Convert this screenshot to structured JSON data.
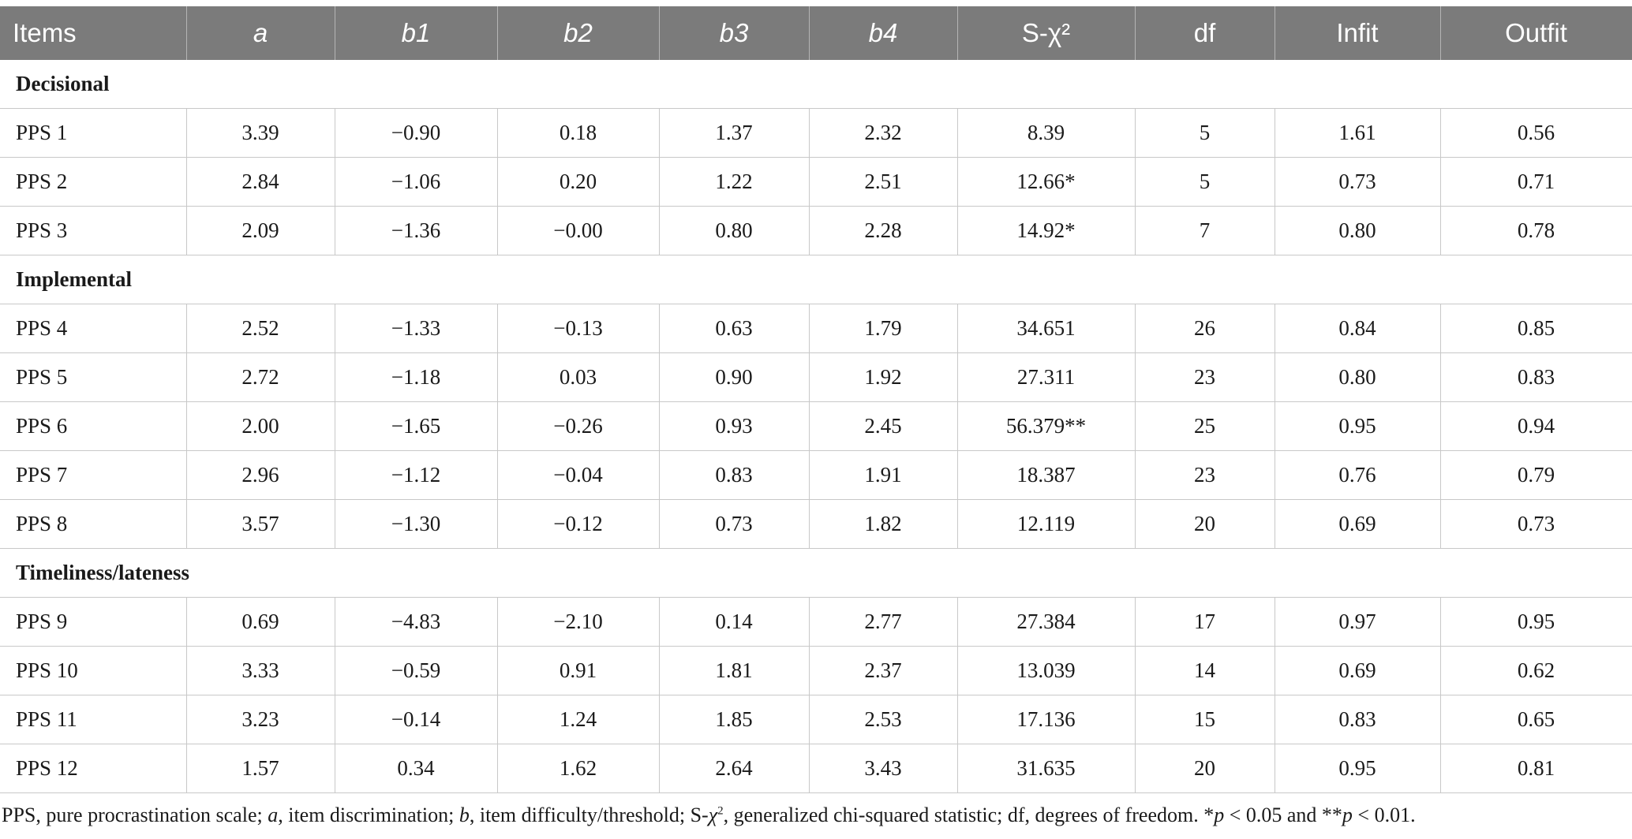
{
  "table": {
    "headers": [
      {
        "label": "Items",
        "italic": false
      },
      {
        "label": "a",
        "italic": true
      },
      {
        "label": "b1",
        "italic": true
      },
      {
        "label": "b2",
        "italic": true
      },
      {
        "label": "b3",
        "italic": true
      },
      {
        "label": "b4",
        "italic": true
      },
      {
        "label": "S-χ²",
        "italic": false
      },
      {
        "label": "df",
        "italic": false
      },
      {
        "label": "Infit",
        "italic": false
      },
      {
        "label": "Outfit",
        "italic": false
      }
    ],
    "groups": [
      {
        "title": "Decisional",
        "rows": [
          [
            "PPS 1",
            "3.39",
            "−0.90",
            "0.18",
            "1.37",
            "2.32",
            "8.39",
            "5",
            "1.61",
            "0.56"
          ],
          [
            "PPS 2",
            "2.84",
            "−1.06",
            "0.20",
            "1.22",
            "2.51",
            "12.66*",
            "5",
            "0.73",
            "0.71"
          ],
          [
            "PPS 3",
            "2.09",
            "−1.36",
            "−0.00",
            "0.80",
            "2.28",
            "14.92*",
            "7",
            "0.80",
            "0.78"
          ]
        ]
      },
      {
        "title": "Implemental",
        "rows": [
          [
            "PPS 4",
            "2.52",
            "−1.33",
            "−0.13",
            "0.63",
            "1.79",
            "34.651",
            "26",
            "0.84",
            "0.85"
          ],
          [
            "PPS 5",
            "2.72",
            "−1.18",
            "0.03",
            "0.90",
            "1.92",
            "27.311",
            "23",
            "0.80",
            "0.83"
          ],
          [
            "PPS 6",
            "2.00",
            "−1.65",
            "−0.26",
            "0.93",
            "2.45",
            "56.379**",
            "25",
            "0.95",
            "0.94"
          ],
          [
            "PPS 7",
            "2.96",
            "−1.12",
            "−0.04",
            "0.83",
            "1.91",
            "18.387",
            "23",
            "0.76",
            "0.79"
          ],
          [
            "PPS 8",
            "3.57",
            "−1.30",
            "−0.12",
            "0.73",
            "1.82",
            "12.119",
            "20",
            "0.69",
            "0.73"
          ]
        ]
      },
      {
        "title": "Timeliness/lateness",
        "rows": [
          [
            "PPS 9",
            "0.69",
            "−4.83",
            "−2.10",
            "0.14",
            "2.77",
            "27.384",
            "17",
            "0.97",
            "0.95"
          ],
          [
            "PPS 10",
            "3.33",
            "−0.59",
            "0.91",
            "1.81",
            "2.37",
            "13.039",
            "14",
            "0.69",
            "0.62"
          ],
          [
            "PPS 11",
            "3.23",
            "−0.14",
            "1.24",
            "1.85",
            "2.53",
            "17.136",
            "15",
            "0.83",
            "0.65"
          ],
          [
            "PPS 12",
            "1.57",
            "0.34",
            "1.62",
            "2.64",
            "3.43",
            "31.635",
            "20",
            "0.95",
            "0.81"
          ]
        ]
      }
    ]
  },
  "footnote": {
    "t1": "PPS, pure procrastination scale; ",
    "i1": "a",
    "t2": ", item discrimination; ",
    "i2": "b",
    "t3": ", item difficulty/threshold; S-",
    "chi": "χ",
    "sup": "2",
    "t4": ", generalized chi-squared statistic; df, degrees of freedom. *",
    "p1": "p",
    "t5": " < 0.05 and **",
    "p2": "p",
    "t6": " < 0.01."
  }
}
